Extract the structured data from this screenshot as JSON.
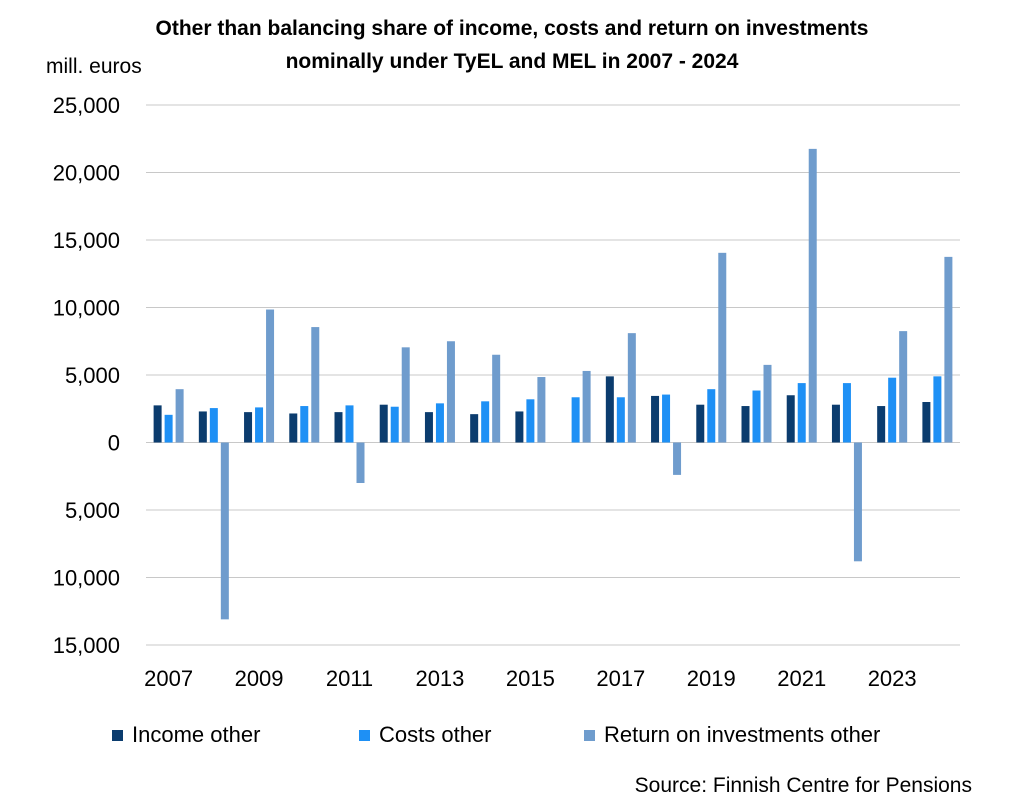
{
  "chart_data": {
    "type": "bar",
    "title_line1": "Other than balancing share of income, costs  and return on investments",
    "title_line2": "nominally under TyEL and MEL in 2007 - 2024",
    "ylabel": "mill. euros",
    "ylim": [
      -15000,
      25000
    ],
    "yticks": [
      25000,
      20000,
      15000,
      10000,
      5000,
      0,
      -5000,
      -10000,
      -15000
    ],
    "ytick_labels": [
      "25,000",
      "20,000",
      "15,000",
      "10,000",
      "5,000",
      "0",
      "5,000",
      "10,000",
      "15,000"
    ],
    "categories": [
      "2007",
      "2008",
      "2009",
      "2010",
      "2011",
      "2012",
      "2013",
      "2014",
      "2015",
      "2016",
      "2017",
      "2018",
      "2019",
      "2020",
      "2021",
      "2022",
      "2023",
      "2024"
    ],
    "xtick_labels": [
      "2007",
      "",
      "2009",
      "",
      "2011",
      "",
      "2013",
      "",
      "2015",
      "",
      "2017",
      "",
      "2019",
      "",
      "2021",
      "",
      "2023",
      ""
    ],
    "series": [
      {
        "name": "Income other",
        "color": "#0b3c6e",
        "values": [
          2750,
          2300,
          2250,
          2150,
          2250,
          2800,
          2250,
          2100,
          2300,
          0,
          4900,
          3450,
          2800,
          2700,
          3500,
          2800,
          2700,
          3000
        ]
      },
      {
        "name": "Costs other",
        "color": "#1e90f5",
        "values": [
          2050,
          2550,
          2600,
          2700,
          2750,
          2650,
          2900,
          3050,
          3200,
          3350,
          3350,
          3550,
          3950,
          3850,
          4400,
          4400,
          4800,
          4900
        ]
      },
      {
        "name": "Return on investments other",
        "color": "#6f9ccd",
        "values": [
          3950,
          -13100,
          9850,
          8550,
          -3000,
          7050,
          7500,
          6500,
          4850,
          5300,
          8100,
          -2400,
          14050,
          5750,
          21750,
          -8800,
          8250,
          13750
        ]
      }
    ],
    "grid": true,
    "legend_position": "bottom",
    "source": "Source: Finnish Centre for Pensions"
  }
}
